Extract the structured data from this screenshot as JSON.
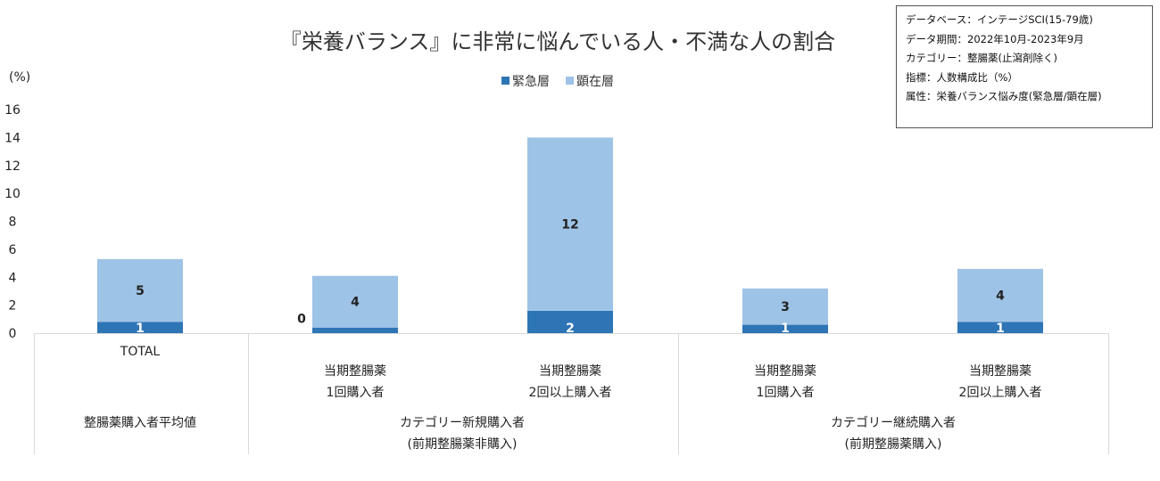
{
  "chart_data": {
    "type": "bar",
    "stacked": true,
    "title": "『栄養バランス』に非常に悩んでいる人・不満な人の割合",
    "ylabel": "(%)",
    "ylim": [
      0,
      16
    ],
    "yticks": [
      0,
      2,
      4,
      6,
      8,
      10,
      12,
      14,
      16
    ],
    "legend_position": "top",
    "grid": false,
    "categories": [
      "TOTAL",
      "当期整腸薬\n1回購入者",
      "当期整腸薬\n2回以上購入者",
      "当期整腸薬\n1回購入者",
      "当期整腸薬\n2回以上購入者"
    ],
    "groups": [
      {
        "label": "整腸薬購入者平均値",
        "categories": [
          0
        ]
      },
      {
        "label": "カテゴリー新規購入者\n(前期整腸薬非購入)",
        "categories": [
          1,
          2
        ]
      },
      {
        "label": "カテゴリー継続購入者\n(前期整腸薬購入)",
        "categories": [
          3,
          4
        ]
      }
    ],
    "series": [
      {
        "name": "緊急層",
        "color": "#2E75B6",
        "values": [
          0.8,
          0.4,
          1.6,
          0.6,
          0.8
        ],
        "labels": [
          "1",
          "0",
          "2",
          "1",
          "1"
        ]
      },
      {
        "name": "顕在層",
        "color": "#9DC3E6",
        "values": [
          4.5,
          3.7,
          12.4,
          2.6,
          3.8
        ],
        "labels": [
          "5",
          "4",
          "12",
          "3",
          "4"
        ]
      }
    ]
  },
  "note": {
    "lines": [
      "データベース：インテージSCI(15-79歳)",
      "データ期間：2022年10月-2023年9月",
      "カテゴリー：整腸薬(止瀉剤除く)",
      "指標：人数構成比（%）",
      "属性：栄養バランス悩み度(緊急層/顕在層)"
    ]
  }
}
